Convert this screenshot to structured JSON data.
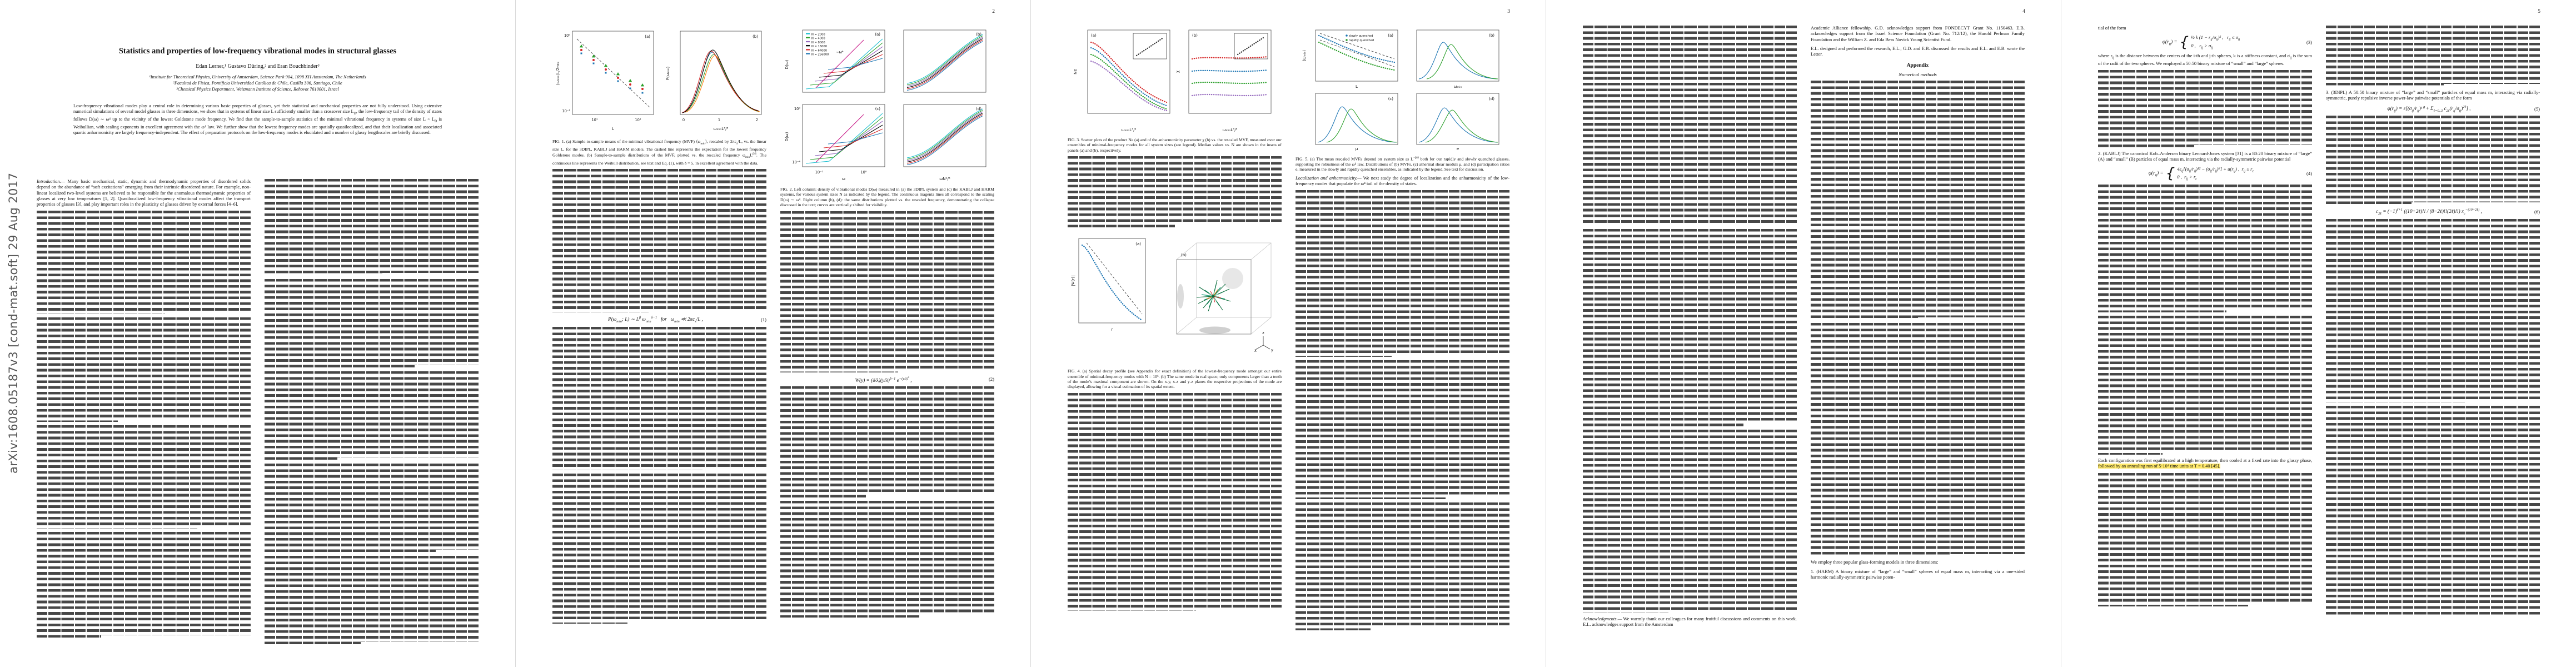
{
  "banner": {
    "text": "arXiv:1608.05187v3  [cond-mat.soft]  29 Aug 2017"
  },
  "p1": {
    "title": "Statistics and properties of low-frequency vibrational modes in structural glasses",
    "authors": "Edan Lerner,¹ Gustavo Düring,² and Eran Bouchbinder³",
    "affils": [
      "¹Institute for Theoretical Physics, University of Amsterdam, Science Park 904, 1098 XH Amsterdam, The Netherlands",
      "²Facultad de Física, Pontificia Universidad Católica de Chile, Casilla 306, Santiago, Chile",
      "³Chemical Physics Department, Weizmann Institute of Science, Rehovot 7610001, Israel"
    ],
    "abstract": "Low-frequency vibrational modes play a central role in determining various basic properties of glasses, yet their statistical and mechanical properties are not fully understood. Using extensive numerical simulations of several model glasses in three dimensions, we show that in systems of linear size L sufficiently smaller than a crossover size L<sub>D</sub>, the low-frequency tail of the density of states follows D(ω) ∼ ω⁴ up to the vicinity of the lowest Goldstone mode frequency. We find that the sample-to-sample statistics of the minimal vibrational frequency in systems of size L &lt; L<sub>D</sub> is Weibullian, with scaling exponents in excellent agreement with the ω⁴ law. We further show that the lowest frequency modes are spatially quasilocalized, and that their localization and associated quartic anharmonicity are largely frequency-independent. The effect of preparation protocols on the low-frequency modes is elucidated and a number of glassy lengthscales are briefly discussed.",
    "intro": "<i>Introduction.—</i> Many basic mechanical, static, dynamic and thermodynamic properties of disordered solids depend on the abundance of “soft excitations” emerging from their intrinsic disordered nature. For example, non-linear localized two-level systems are believed to be responsible for the anomalous thermodynamic properties of glasses at very low temperatures [1, 2]. Quasilocalized low-frequency vibrational modes affect the transport properties of glasses [3], and play important roles in the plasticity of glasses driven by external forces [4–6]."
  },
  "p2": {
    "num": "2",
    "fig1": {
      "caption": "FIG. 1. (a) Sample-to-sample means of the minimal vibrational frequency (MVF) ⟨ω<sub>min</sub>⟩, rescaled by 2πc<sub>s</sub>/L, vs. the linear size L, for the 3DIPL, KABLJ and HARM models. The dashed line represents the expectation for the lowest frequency Goldstone modes. (b) Sample-to-sample distributions of the MVF, plotted vs. the rescaled frequency ω<sub>min</sub>L<sup>β/δ</sup>. The continuous line represents the Weibull distribution, see text and Eq. (1), with δ = 5, in excellent agreement with the data.",
      "tags": [
        "(a)",
        "(b)"
      ],
      "a": {
        "xlabel": "L",
        "ylabel": "⟨ωₘᵢₙ⟩L/2πcₛ",
        "xticks": [
          "10¹",
          "10²"
        ],
        "yticks": [
          "10⁰",
          "10⁻¹"
        ]
      },
      "b": {
        "xlabel": "ωₘᵢₙL³/⁵",
        "ylabel": "P(ωₘᵢₙ)",
        "xticks": [
          "0",
          "1",
          "2"
        ]
      }
    },
    "fig2": {
      "caption": "FIG. 2. Left column: density of vibrational modes D(ω) measured in (a) the 3DIPL system and (c) the KABLJ and HARM systems, for various system sizes N as indicated by the legend. The continuous magenta lines all correspond to the scaling D(ω) ∼ ω⁴. Right column (b), (d): the same distributions plotted vs. the rescaled frequency, demonstrating the collapse discussed in the text; curves are vertically shifted for visibility.",
      "tags": [
        "(a)",
        "(b)",
        "(c)",
        "(d)"
      ],
      "legend": [
        "N = 2000",
        "N = 4000",
        "N = 8000",
        "N = 16000",
        "N = 64000",
        "N = 256000"
      ],
      "ylabel": "D(ω)",
      "xlabel_left": "ω",
      "xlabel_right": "ωN¹/⁵",
      "guide": "∼ω⁴",
      "xticks": [
        "10⁻¹",
        "10⁰"
      ],
      "yticks": [
        "10⁰",
        "10⁻⁴"
      ]
    },
    "eq1": {
      "body": "P(ω<sub>min</sub>; L) ∼ L<sup>β</sup> ω<sub>min</sub><sup>δ−1</sup>&nbsp;&nbsp; for &nbsp;&nbsp;ω<sub>min</sub> ≪ 2πc<sub>s</sub>/L ,",
      "num": "(1)"
    },
    "eq2": {
      "body": "W(y) = (δ/λ)(y/λ)<sup>δ−1</sup> e<sup>−(y/λ)<sup>δ</sup></sup> ,",
      "num": "(2)"
    }
  },
  "p3": {
    "num": "3",
    "fig3": {
      "caption": "FIG. 3. Scatter plots of the product Ne (a) and of the anharmonicity parameter χ (b) vs. the rescaled MVF, measured over our ensembles of minimal-frequency modes for all system sizes (see legend). Median values vs. N are shown in the insets of panels (a) and (b), respectively.",
      "tags": [
        "(a)",
        "(b)"
      ],
      "ylabel_a": "Ne",
      "ylabel_b": "χ",
      "xlabel": "ωₘᵢₙL³/⁵"
    },
    "fig4": {
      "caption": "FIG. 4. (a) Spatial decay profile (see Appendix for exact definition) of the lowest-frequency mode amongst our entire ensemble of minimal-frequency modes with N = 10⁶. (b) The same mode in real space; only components larger than a tenth of the mode’s maximal component are shown. On the x-y, x-z and y-z planes the respective projections of the mode are displayed, allowing for a visual estimation of its spatial extent.",
      "tags": [
        "(a)",
        "(b)"
      ],
      "xlabel_a": "r",
      "ylabel_a": "|Ψ(r)|",
      "axes": [
        "x",
        "y",
        "z"
      ]
    },
    "fig5": {
      "caption": "FIG. 5. (a) The mean rescaled MVFs depend on system size as L<sup>−β/δ</sup> both for our rapidly and slowly quenched glasses, supporting the robustness of the ω⁴ law. Distributions of (b) MVFs, (c) athermal shear moduli μ, and (d) participation ratios e, measured in the slowly and rapidly quenched ensembles, as indicated by the legend. See text for discussion.",
      "tags": [
        "(a)",
        "(b)",
        "(c)",
        "(d)"
      ],
      "legend": [
        "slowly quenched",
        "rapidly quenched"
      ],
      "xlabels": [
        "L",
        "ωₘᵢₙ",
        "μ",
        "e"
      ],
      "ylabel_a": "⟨ωₘᵢₙ⟩"
    },
    "lead": "<i>Localization and anharmonicity.—</i> We next study the degree of localization and the anharmonicity of the low-frequency modes that populate the ω⁴ tail of the density of states."
  },
  "p4": {
    "num": "4",
    "ack": "<i>Acknowledgments.—</i> We warmly thank our colleagues for many fruitful discussions and comments on this work. E.L. acknowledges support from the Amsterdam",
    "ack_cont": "Academic Alliance fellowship. G.D. acknowledges support from FONDECYT Grant No. 1150463. E.B. acknowledges support from the Israel Science Foundation (Grant No. 712/12), the Harold Perlman Family Foundation and the William Z. and Eda Bess Novick Young Scientist Fund.",
    "contrib": "E.L. designed and performed the research, E.L., G.D. and E.B. discussed the results and E.L. and E.B. wrote the Letter.",
    "appendix_head": "Appendix",
    "numerics_head": "Numerical methods",
    "models_intro": "We employ three popular glass-forming models in three dimensions:",
    "item1": "1. (HARM) A binary mixture of “large” and “small” spheres of equal mass m, interacting via a one-sided harmonic radially-symmetric pairwise poten-"
  },
  "p5": {
    "num": "5",
    "cont_line": "tial of the form",
    "eq3": {
      "lhs": "φ(r<sub>ij</sub>) =",
      "c1": "½ k (1 − r<sub>ij</sub>/σ<sub>ij</sub>)² ,&nbsp;&nbsp; r<sub>ij</sub> ≤ σ<sub>ij</sub>",
      "c2": "0 ,&nbsp;&nbsp; r<sub>ij</sub> &gt; σ<sub>ij</sub>",
      "num": "(3)"
    },
    "after3": "where r<sub>ij</sub> is the distance between the centers of the i-th and j-th spheres, k is a stiffness constant, and σ<sub>ij</sub> is the sum of the radii of the two spheres. We employed a 50:50 binary mixture of “small” and “large” spheres.",
    "item2": "2. (KABLJ) The canonical Kob–Andersen binary Lennard-Jones system [31] is a 80:20 binary mixture of “large” (A) and “small” (B) particles of equal mass m, interacting via the radially-symmetric pairwise potential",
    "eq4": {
      "lhs": "φ(r<sub>ij</sub>) =",
      "c1": "4ε<sub>ij</sub>[(σ<sub>ij</sub>/r<sub>ij</sub>)¹² − (σ<sub>ij</sub>/r<sub>ij</sub>)⁶] + u(r<sub>ij</sub>) ,&nbsp; r<sub>ij</sub> ≤ r<sub>c</sub>",
      "c2": "0 ,&nbsp; r<sub>ij</sub> &gt; r<sub>c</sub>",
      "num": "(4)"
    },
    "pre_highlight": "Each configuration was first equilibrated at a high temperature, then cooled at a fixed rate into the glassy phase,",
    "highlight": "followed by an annealing run of 5·10⁴ time units at T = 0.40 [45].",
    "item3": "3. (3DIPL) A 50:50 binary mixture of “large” and “small” particles of equal mass m, interacting via radially-symmetric, purely repulsive inverse power-law pairwise potentials of the form",
    "eq5": {
      "body": "φ(r<sub>ij</sub>) = ε[(σ<sub>ij</sub>/r<sub>ij</sub>)¹⁰ + Σ<sub>ℓ=0..3</sub> c<sub>2ℓ</sub>(r<sub>ij</sub>/σ<sub>ij</sub>)<sup>2ℓ</sup>] ,",
      "num": "(5)"
    },
    "eq6": {
      "body": "c<sub>2ℓ</sub> = (−1)<sup>ℓ+1</sup> ((10+2ℓ)!! / (8−2ℓ)!!(2ℓ)!!) x<sub>c</sub><sup>−(10+2ℓ)</sup> ,",
      "num": "(6)"
    }
  }
}
